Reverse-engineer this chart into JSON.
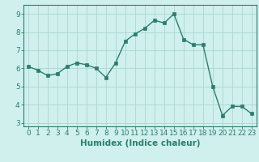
{
  "x": [
    0,
    1,
    2,
    3,
    4,
    5,
    6,
    7,
    8,
    9,
    10,
    11,
    12,
    13,
    14,
    15,
    16,
    17,
    18,
    19,
    20,
    21,
    22,
    23
  ],
  "y": [
    6.1,
    5.9,
    5.6,
    5.7,
    6.1,
    6.3,
    6.2,
    6.0,
    5.5,
    6.3,
    7.5,
    7.9,
    8.2,
    8.65,
    8.5,
    9.0,
    7.6,
    7.3,
    7.3,
    5.0,
    3.4,
    3.9,
    3.9,
    3.5
  ],
  "xlabel": "Humidex (Indice chaleur)",
  "xlim": [
    -0.5,
    23.5
  ],
  "ylim": [
    2.8,
    9.5
  ],
  "yticks": [
    3,
    4,
    5,
    6,
    7,
    8,
    9
  ],
  "xticks": [
    0,
    1,
    2,
    3,
    4,
    5,
    6,
    7,
    8,
    9,
    10,
    11,
    12,
    13,
    14,
    15,
    16,
    17,
    18,
    19,
    20,
    21,
    22,
    23
  ],
  "line_color": "#2d7d6e",
  "marker": "s",
  "marker_size": 2.5,
  "bg_color": "#cff0ec",
  "grid_color_major": "#aad8d0",
  "grid_color_minor": "#c4e8e2",
  "axes_color": "#2d7d6e",
  "tick_label_color": "#2d7d6e",
  "xlabel_color": "#2d7d6e",
  "xlabel_fontsize": 7.5,
  "tick_fontsize": 6.5,
  "line_width": 1.0
}
